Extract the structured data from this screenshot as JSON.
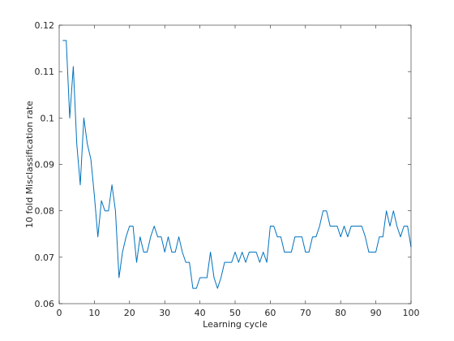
{
  "chart_data": {
    "type": "line",
    "title": "",
    "xlabel": "Learning cycle",
    "ylabel": "10 fold Misclassification rate",
    "xlim": [
      0,
      100
    ],
    "ylim": [
      0.06,
      0.12
    ],
    "xticks": [
      0,
      10,
      20,
      30,
      40,
      50,
      60,
      70,
      80,
      90,
      100
    ],
    "xtick_labels": [
      "0",
      "10",
      "20",
      "30",
      "40",
      "50",
      "60",
      "70",
      "80",
      "90",
      "100"
    ],
    "yticks": [
      0.06,
      0.07,
      0.08,
      0.09,
      0.1,
      0.11,
      0.12
    ],
    "ytick_labels": [
      "0.06",
      "0.07",
      "0.08",
      "0.09",
      "0.1",
      "0.11",
      "0.12"
    ],
    "grid": false,
    "line_color": "#0072BD",
    "series": [
      {
        "x": [
          1,
          2,
          3,
          4,
          5,
          6,
          7,
          8,
          9,
          10,
          11,
          12,
          13,
          14,
          15,
          16,
          17,
          18,
          19,
          20,
          21,
          22,
          23,
          24,
          25,
          26,
          27,
          28,
          29,
          30,
          31,
          32,
          33,
          34,
          35,
          36,
          37,
          38,
          39,
          40,
          41,
          42,
          43,
          44,
          45,
          46,
          47,
          48,
          49,
          50,
          51,
          52,
          53,
          54,
          55,
          56,
          57,
          58,
          59,
          60,
          61,
          62,
          63,
          64,
          65,
          66,
          67,
          68,
          69,
          70,
          71,
          72,
          73,
          74,
          75,
          76,
          77,
          78,
          79,
          80,
          81,
          82,
          83,
          84,
          85,
          86,
          87,
          88,
          89,
          90,
          91,
          92,
          93,
          94,
          95,
          96,
          97,
          98,
          99,
          100
        ],
        "values": [
          0.1167,
          0.1167,
          0.1,
          0.1111,
          0.0944,
          0.0856,
          0.1,
          0.0944,
          0.0911,
          0.0833,
          0.0744,
          0.0822,
          0.08,
          0.08,
          0.0856,
          0.08,
          0.0656,
          0.0711,
          0.0744,
          0.0767,
          0.0767,
          0.0689,
          0.0744,
          0.0711,
          0.0711,
          0.0744,
          0.0767,
          0.0744,
          0.0744,
          0.0711,
          0.0744,
          0.0711,
          0.0711,
          0.0744,
          0.0711,
          0.0689,
          0.0689,
          0.0633,
          0.0633,
          0.0656,
          0.0656,
          0.0656,
          0.0711,
          0.0656,
          0.0633,
          0.0656,
          0.0689,
          0.0689,
          0.0689,
          0.0711,
          0.0689,
          0.0711,
          0.0689,
          0.0711,
          0.0711,
          0.0711,
          0.0689,
          0.0711,
          0.0689,
          0.0767,
          0.0767,
          0.0744,
          0.0744,
          0.0711,
          0.0711,
          0.0711,
          0.0744,
          0.0744,
          0.0744,
          0.0711,
          0.0711,
          0.0744,
          0.0744,
          0.0767,
          0.08,
          0.08,
          0.0767,
          0.0767,
          0.0767,
          0.0744,
          0.0767,
          0.0744,
          0.0767,
          0.0767,
          0.0767,
          0.0767,
          0.0744,
          0.0711,
          0.0711,
          0.0711,
          0.0744,
          0.0744,
          0.08,
          0.0767,
          0.08,
          0.0767,
          0.0744,
          0.0767,
          0.0767,
          0.0722
        ]
      }
    ]
  }
}
